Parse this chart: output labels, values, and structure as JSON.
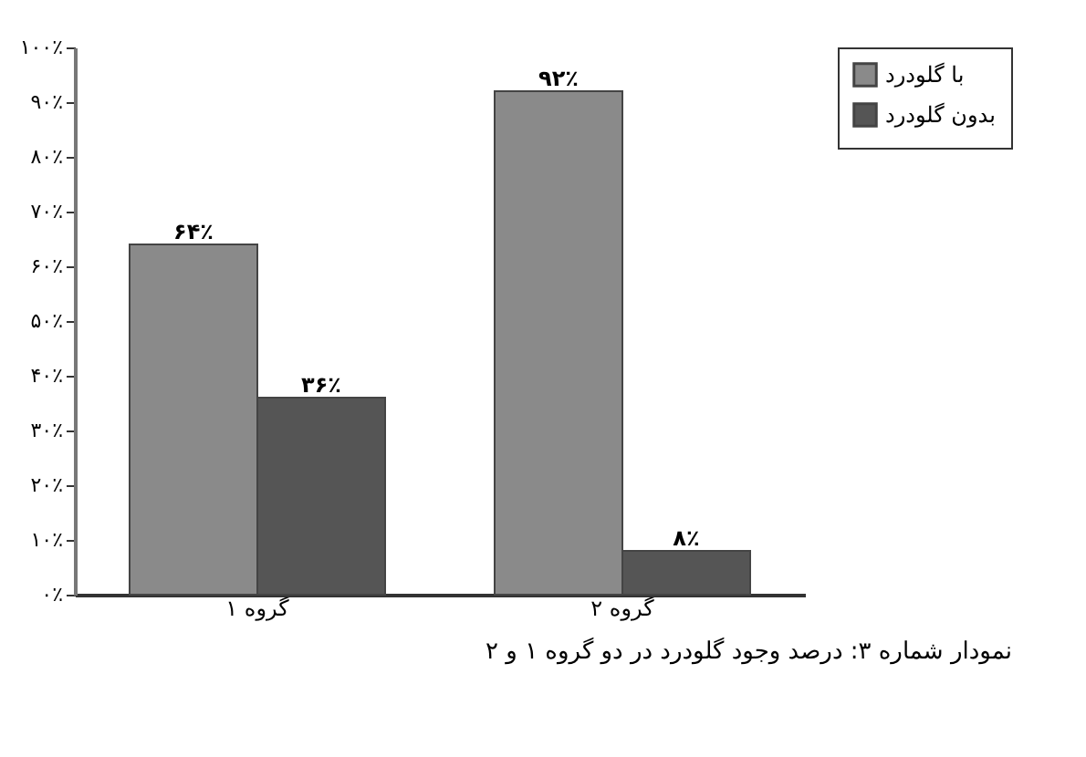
{
  "chart_data": {
    "type": "bar",
    "title": "نمودار شماره ۳: درصد وجود گلودرد در دو گروه ۱ و ۲",
    "categories": [
      "گروه ۱",
      "گروه ۲"
    ],
    "series": [
      {
        "name": "با گلودرد",
        "color": "#8a8a8a",
        "values": [
          64,
          92
        ],
        "value_labels": [
          "۶۴٪",
          "۹۲٪"
        ]
      },
      {
        "name": "بدون گلودرد",
        "color": "#555555",
        "values": [
          36,
          8
        ],
        "value_labels": [
          "۳۶٪",
          "۸٪"
        ]
      }
    ],
    "ylim": [
      0,
      100
    ],
    "yticks": [
      {
        "value": 0,
        "label": "۰٪"
      },
      {
        "value": 10,
        "label": "۱۰٪"
      },
      {
        "value": 20,
        "label": "۲۰٪"
      },
      {
        "value": 30,
        "label": "۳۰٪"
      },
      {
        "value": 40,
        "label": "۴۰٪"
      },
      {
        "value": 50,
        "label": "۵۰٪"
      },
      {
        "value": 60,
        "label": "۶۰٪"
      },
      {
        "value": 70,
        "label": "۷۰٪"
      },
      {
        "value": 80,
        "label": "۸۰٪"
      },
      {
        "value": 90,
        "label": "۹۰٪"
      },
      {
        "value": 100,
        "label": "۱۰۰٪"
      }
    ],
    "legend": "right",
    "grid": false
  }
}
